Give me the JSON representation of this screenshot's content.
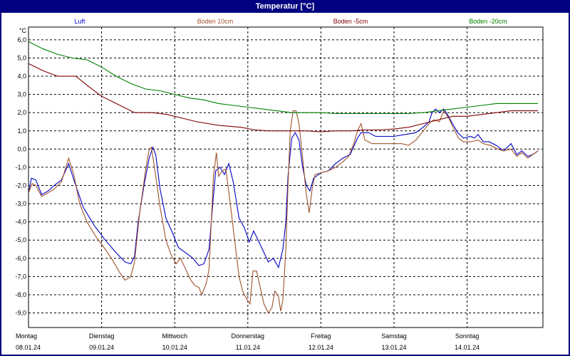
{
  "window": {
    "title": "Temperatur [°C]"
  },
  "colors": {
    "frame": "#000080",
    "grid": "#000000"
  },
  "chart_data": {
    "type": "line",
    "title": "Temperatur [°C]",
    "ylabel": "°C",
    "xlabel": "",
    "ylim": [
      -9.8,
      6.7
    ],
    "xlim": [
      0,
      7
    ],
    "grid": true,
    "legend_placement": "top",
    "y_ticks": [
      "6,0",
      "5,0",
      "4,0",
      "3,0",
      "2,0",
      "1,0",
      "0,0",
      "-1,0",
      "-2,0",
      "-3,0",
      "-4,0",
      "-5,0",
      "-6,0",
      "-7,0",
      "-8,0",
      "-9,0"
    ],
    "y_tick_values": [
      6,
      5,
      4,
      3,
      2,
      1,
      0,
      -1,
      -2,
      -3,
      -4,
      -5,
      -6,
      -7,
      -8,
      -9
    ],
    "x_labels": [
      {
        "day": "Montag",
        "date": "08.01.24",
        "x": 0
      },
      {
        "day": "Dienstag",
        "date": "09.01.24",
        "x": 1
      },
      {
        "day": "Mittwoch",
        "date": "10.01.24",
        "x": 2
      },
      {
        "day": "Donnerstag",
        "date": "11.01.24",
        "x": 3
      },
      {
        "day": "Freitag",
        "date": "12.01.24",
        "x": 4
      },
      {
        "day": "Samstag",
        "date": "13.01.24",
        "x": 5
      },
      {
        "day": "Sonntag",
        "date": "14.01.24",
        "x": 6
      }
    ],
    "series": [
      {
        "name": "Luft",
        "color": "#0000c8",
        "points": [
          [
            0,
            -2.4
          ],
          [
            0.04,
            -1.6
          ],
          [
            0.1,
            -1.7
          ],
          [
            0.18,
            -2.5
          ],
          [
            0.27,
            -2.3
          ],
          [
            0.35,
            -2.0
          ],
          [
            0.45,
            -1.7
          ],
          [
            0.55,
            -0.8
          ],
          [
            0.63,
            -1.8
          ],
          [
            0.75,
            -3.2
          ],
          [
            0.9,
            -4.2
          ],
          [
            1.05,
            -5.0
          ],
          [
            1.2,
            -5.7
          ],
          [
            1.32,
            -6.2
          ],
          [
            1.4,
            -6.3
          ],
          [
            1.45,
            -5.9
          ],
          [
            1.5,
            -4.0
          ],
          [
            1.58,
            -2.0
          ],
          [
            1.65,
            -0.5
          ],
          [
            1.7,
            0.1
          ],
          [
            1.74,
            -0.3
          ],
          [
            1.8,
            -2.2
          ],
          [
            1.88,
            -3.8
          ],
          [
            1.97,
            -4.6
          ],
          [
            2.05,
            -5.4
          ],
          [
            2.15,
            -5.7
          ],
          [
            2.25,
            -6.0
          ],
          [
            2.33,
            -6.4
          ],
          [
            2.4,
            -6.3
          ],
          [
            2.47,
            -5.5
          ],
          [
            2.52,
            -3.0
          ],
          [
            2.56,
            -1.2
          ],
          [
            2.62,
            -1.0
          ],
          [
            2.68,
            -1.4
          ],
          [
            2.74,
            -0.8
          ],
          [
            2.8,
            -1.8
          ],
          [
            2.88,
            -3.8
          ],
          [
            2.95,
            -4.3
          ],
          [
            3.02,
            -5.1
          ],
          [
            3.08,
            -4.5
          ],
          [
            3.14,
            -5.0
          ],
          [
            3.2,
            -5.5
          ],
          [
            3.28,
            -6.2
          ],
          [
            3.35,
            -6.0
          ],
          [
            3.42,
            -6.5
          ],
          [
            3.48,
            -5.5
          ],
          [
            3.52,
            -4.0
          ],
          [
            3.55,
            -1.5
          ],
          [
            3.6,
            0.6
          ],
          [
            3.65,
            0.9
          ],
          [
            3.7,
            0.5
          ],
          [
            3.75,
            -1.0
          ],
          [
            3.8,
            -2.0
          ],
          [
            3.85,
            -2.3
          ],
          [
            3.9,
            -1.6
          ],
          [
            4.0,
            -1.3
          ],
          [
            4.1,
            -1.2
          ],
          [
            4.2,
            -0.8
          ],
          [
            4.3,
            -0.5
          ],
          [
            4.4,
            -0.3
          ],
          [
            4.5,
            0.6
          ],
          [
            4.55,
            0.9
          ],
          [
            4.65,
            0.9
          ],
          [
            4.75,
            0.7
          ],
          [
            4.9,
            0.7
          ],
          [
            5.0,
            0.7
          ],
          [
            5.15,
            0.8
          ],
          [
            5.3,
            0.9
          ],
          [
            5.4,
            1.2
          ],
          [
            5.48,
            1.5
          ],
          [
            5.52,
            2.0
          ],
          [
            5.57,
            2.2
          ],
          [
            5.62,
            2.0
          ],
          [
            5.68,
            2.2
          ],
          [
            5.73,
            1.9
          ],
          [
            5.8,
            1.4
          ],
          [
            5.87,
            0.9
          ],
          [
            5.95,
            0.6
          ],
          [
            6.05,
            0.7
          ],
          [
            6.1,
            0.6
          ],
          [
            6.15,
            0.8
          ],
          [
            6.22,
            0.4
          ],
          [
            6.3,
            0.4
          ],
          [
            6.4,
            0.2
          ],
          [
            6.5,
            -0.1
          ],
          [
            6.6,
            0.3
          ],
          [
            6.68,
            -0.3
          ],
          [
            6.75,
            -0.1
          ],
          [
            6.83,
            -0.4
          ],
          [
            6.9,
            -0.3
          ],
          [
            6.97,
            -0.1
          ]
        ]
      },
      {
        "name": "Boden 10cm",
        "color": "#a0522d",
        "points": [
          [
            0,
            -2.4
          ],
          [
            0.05,
            -1.9
          ],
          [
            0.1,
            -2.0
          ],
          [
            0.18,
            -2.6
          ],
          [
            0.27,
            -2.4
          ],
          [
            0.35,
            -2.2
          ],
          [
            0.45,
            -1.8
          ],
          [
            0.55,
            -0.5
          ],
          [
            0.62,
            -1.4
          ],
          [
            0.7,
            -3.0
          ],
          [
            0.8,
            -4.0
          ],
          [
            0.92,
            -4.8
          ],
          [
            1.05,
            -5.5
          ],
          [
            1.15,
            -6.1
          ],
          [
            1.25,
            -6.8
          ],
          [
            1.32,
            -7.2
          ],
          [
            1.4,
            -7.0
          ],
          [
            1.45,
            -6.2
          ],
          [
            1.52,
            -3.5
          ],
          [
            1.6,
            -1.2
          ],
          [
            1.65,
            0.0
          ],
          [
            1.68,
            0.1
          ],
          [
            1.73,
            -1.2
          ],
          [
            1.8,
            -3.2
          ],
          [
            1.88,
            -5.0
          ],
          [
            1.95,
            -5.8
          ],
          [
            2.02,
            -6.3
          ],
          [
            2.08,
            -6.0
          ],
          [
            2.15,
            -6.6
          ],
          [
            2.22,
            -7.2
          ],
          [
            2.28,
            -7.5
          ],
          [
            2.33,
            -7.6
          ],
          [
            2.37,
            -8.0
          ],
          [
            2.43,
            -7.4
          ],
          [
            2.47,
            -6.6
          ],
          [
            2.5,
            -4.0
          ],
          [
            2.53,
            -1.5
          ],
          [
            2.57,
            -0.2
          ],
          [
            2.6,
            -1.5
          ],
          [
            2.65,
            -1.2
          ],
          [
            2.7,
            -1.1
          ],
          [
            2.76,
            -3.0
          ],
          [
            2.82,
            -5.0
          ],
          [
            2.88,
            -7.0
          ],
          [
            2.93,
            -7.8
          ],
          [
            2.98,
            -8.2
          ],
          [
            3.03,
            -8.5
          ],
          [
            3.07,
            -6.7
          ],
          [
            3.12,
            -6.7
          ],
          [
            3.17,
            -7.6
          ],
          [
            3.22,
            -8.5
          ],
          [
            3.28,
            -9.0
          ],
          [
            3.33,
            -8.7
          ],
          [
            3.37,
            -7.8
          ],
          [
            3.42,
            -8.1
          ],
          [
            3.45,
            -8.9
          ],
          [
            3.48,
            -8.3
          ],
          [
            3.52,
            -5.5
          ],
          [
            3.55,
            -2.0
          ],
          [
            3.58,
            1.0
          ],
          [
            3.62,
            2.1
          ],
          [
            3.66,
            2.1
          ],
          [
            3.7,
            1.4
          ],
          [
            3.75,
            -0.5
          ],
          [
            3.8,
            -2.5
          ],
          [
            3.84,
            -3.5
          ],
          [
            3.88,
            -2.2
          ],
          [
            3.92,
            -1.4
          ],
          [
            4.0,
            -1.3
          ],
          [
            4.1,
            -1.2
          ],
          [
            4.2,
            -1.0
          ],
          [
            4.3,
            -0.7
          ],
          [
            4.38,
            -0.4
          ],
          [
            4.45,
            0.3
          ],
          [
            4.5,
            1.0
          ],
          [
            4.55,
            1.4
          ],
          [
            4.6,
            0.5
          ],
          [
            4.7,
            0.3
          ],
          [
            4.8,
            0.3
          ],
          [
            4.9,
            0.3
          ],
          [
            5.0,
            0.3
          ],
          [
            5.1,
            0.3
          ],
          [
            5.2,
            0.2
          ],
          [
            5.3,
            0.5
          ],
          [
            5.4,
            1.0
          ],
          [
            5.5,
            1.5
          ],
          [
            5.55,
            1.6
          ],
          [
            5.62,
            1.5
          ],
          [
            5.68,
            2.1
          ],
          [
            5.75,
            1.7
          ],
          [
            5.82,
            1.1
          ],
          [
            5.88,
            0.6
          ],
          [
            5.95,
            0.4
          ],
          [
            6.05,
            0.4
          ],
          [
            6.15,
            0.5
          ],
          [
            6.22,
            0.3
          ],
          [
            6.32,
            0.2
          ],
          [
            6.42,
            0.0
          ],
          [
            6.5,
            -0.1
          ],
          [
            6.6,
            0.0
          ],
          [
            6.68,
            -0.4
          ],
          [
            6.75,
            -0.2
          ],
          [
            6.83,
            -0.5
          ],
          [
            6.9,
            -0.3
          ],
          [
            6.97,
            -0.1
          ]
        ]
      },
      {
        "name": "Boden -5cm",
        "color": "#800000",
        "points": [
          [
            0,
            4.7
          ],
          [
            0.2,
            4.3
          ],
          [
            0.4,
            4.0
          ],
          [
            0.65,
            4.0
          ],
          [
            0.8,
            3.5
          ],
          [
            1.0,
            2.9
          ],
          [
            1.2,
            2.5
          ],
          [
            1.45,
            2.0
          ],
          [
            1.7,
            2.0
          ],
          [
            1.9,
            1.9
          ],
          [
            2.1,
            1.7
          ],
          [
            2.3,
            1.5
          ],
          [
            2.6,
            1.3
          ],
          [
            2.9,
            1.2
          ],
          [
            3.1,
            1.05
          ],
          [
            3.3,
            1.0
          ],
          [
            3.6,
            1.0
          ],
          [
            3.8,
            1.0
          ],
          [
            4.0,
            0.95
          ],
          [
            4.2,
            1.0
          ],
          [
            4.4,
            1.0
          ],
          [
            4.6,
            1.05
          ],
          [
            4.8,
            1.05
          ],
          [
            5.0,
            1.1
          ],
          [
            5.2,
            1.2
          ],
          [
            5.4,
            1.4
          ],
          [
            5.6,
            1.6
          ],
          [
            5.8,
            1.8
          ],
          [
            6.0,
            1.8
          ],
          [
            6.2,
            1.9
          ],
          [
            6.4,
            2.0
          ],
          [
            6.6,
            2.1
          ],
          [
            6.8,
            2.1
          ],
          [
            6.97,
            2.1
          ]
        ]
      },
      {
        "name": "Boden -20cm",
        "color": "#008000",
        "points": [
          [
            0,
            5.9
          ],
          [
            0.2,
            5.5
          ],
          [
            0.4,
            5.2
          ],
          [
            0.6,
            5.0
          ],
          [
            0.8,
            4.9
          ],
          [
            1.0,
            4.5
          ],
          [
            1.2,
            4.0
          ],
          [
            1.4,
            3.6
          ],
          [
            1.6,
            3.3
          ],
          [
            1.8,
            3.2
          ],
          [
            2.0,
            3.0
          ],
          [
            2.2,
            2.8
          ],
          [
            2.4,
            2.7
          ],
          [
            2.6,
            2.5
          ],
          [
            2.8,
            2.4
          ],
          [
            3.0,
            2.3
          ],
          [
            3.2,
            2.2
          ],
          [
            3.4,
            2.1
          ],
          [
            3.6,
            2.0
          ],
          [
            3.8,
            2.0
          ],
          [
            4.0,
            2.0
          ],
          [
            4.2,
            1.95
          ],
          [
            4.4,
            1.95
          ],
          [
            4.6,
            1.95
          ],
          [
            4.8,
            1.95
          ],
          [
            5.0,
            1.95
          ],
          [
            5.2,
            1.95
          ],
          [
            5.4,
            2.0
          ],
          [
            5.6,
            2.1
          ],
          [
            5.8,
            2.2
          ],
          [
            6.0,
            2.3
          ],
          [
            6.2,
            2.4
          ],
          [
            6.4,
            2.5
          ],
          [
            6.6,
            2.5
          ],
          [
            6.8,
            2.5
          ],
          [
            6.97,
            2.5
          ]
        ]
      }
    ]
  }
}
